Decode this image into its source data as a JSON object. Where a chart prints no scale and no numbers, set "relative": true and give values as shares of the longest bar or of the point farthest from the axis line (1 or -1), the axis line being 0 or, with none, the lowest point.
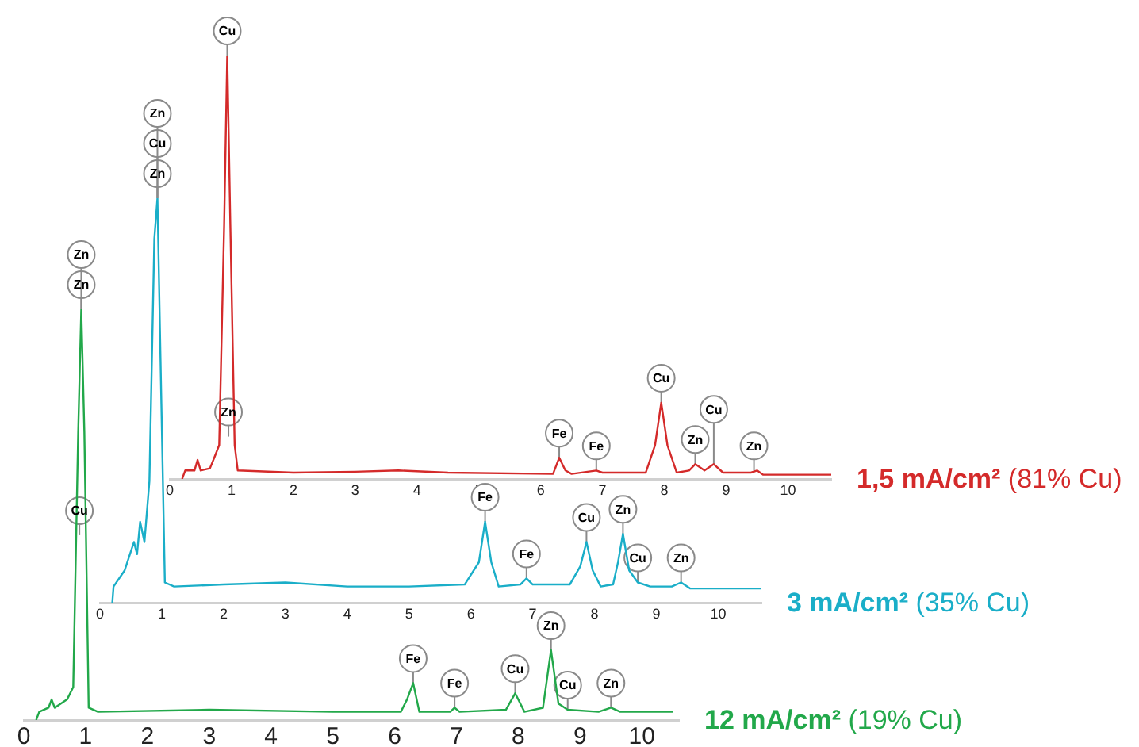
{
  "chart_data": [
    {
      "type": "line",
      "relative": true,
      "marker": "none",
      "xlim": [
        0,
        10.7
      ],
      "xticks": [
        0,
        1,
        2,
        3,
        4,
        5,
        6,
        7,
        8,
        9,
        10
      ],
      "x": [
        0.2,
        0.25,
        0.4,
        0.45,
        0.5,
        0.65,
        0.72,
        0.8,
        0.88,
        0.93,
        0.98,
        1.05,
        1.1,
        2,
        3,
        3.7,
        4.5,
        6.2,
        6.3,
        6.4,
        6.5,
        6.9,
        7,
        7.7,
        7.85,
        7.95,
        8.05,
        8.2,
        8.4,
        8.5,
        8.65,
        8.8,
        8.95,
        9.4,
        9.5,
        9.6,
        10.7
      ],
      "series": [
        {
          "name": "1,5 mA/cm² (81% Cu)",
          "color": "#d42a2a",
          "values": [
            0,
            0.02,
            0.02,
            0.045,
            0.02,
            0.025,
            0.05,
            0.08,
            0.6,
            1,
            0.6,
            0.08,
            0.02,
            0.015,
            0.017,
            0.02,
            0.015,
            0.012,
            0.05,
            0.02,
            0.012,
            0.02,
            0.015,
            0.015,
            0.08,
            0.18,
            0.08,
            0.015,
            0.02,
            0.035,
            0.02,
            0.035,
            0.015,
            0.015,
            0.02,
            0.01,
            0.01
          ]
        }
      ],
      "annotations": [
        {
          "text": "Cu",
          "x": 0.93,
          "y": 1
        },
        {
          "text": "Zn",
          "x": 0.95,
          "y": 0.1
        },
        {
          "text": "Fe",
          "x": 6.3,
          "y": 0.05
        },
        {
          "text": "Fe",
          "x": 6.9,
          "y": 0.02
        },
        {
          "text": "Cu",
          "x": 7.95,
          "y": 0.18
        },
        {
          "text": "Zn",
          "x": 8.5,
          "y": 0.035
        },
        {
          "text": "Cu",
          "x": 8.8,
          "y": 0.035
        },
        {
          "text": "Zn",
          "x": 9.45,
          "y": 0.02
        }
      ]
    },
    {
      "type": "line",
      "relative": true,
      "marker": "none",
      "xlim": [
        0,
        10.7
      ],
      "xticks": [
        0,
        1,
        2,
        3,
        4,
        5,
        6,
        7,
        8,
        9,
        10
      ],
      "x": [
        0.2,
        0.22,
        0.4,
        0.55,
        0.6,
        0.65,
        0.72,
        0.8,
        0.88,
        0.93,
        0.98,
        1.05,
        1.2,
        2,
        3,
        4,
        5,
        5.9,
        6.13,
        6.23,
        6.33,
        6.45,
        6.8,
        6.9,
        7,
        7.6,
        7.77,
        7.87,
        7.97,
        8.1,
        8.3,
        8.38,
        8.46,
        8.56,
        8.7,
        8.9,
        9.25,
        9.4,
        9.55,
        10.7
      ],
      "series": [
        {
          "name": "3 mA/cm² (35% Cu)",
          "color": "#1aaec8",
          "values": [
            0,
            0.04,
            0.08,
            0.15,
            0.12,
            0.2,
            0.15,
            0.3,
            0.9,
            1,
            0.6,
            0.05,
            0.04,
            0.045,
            0.05,
            0.04,
            0.04,
            0.045,
            0.1,
            0.2,
            0.1,
            0.04,
            0.045,
            0.06,
            0.045,
            0.045,
            0.09,
            0.15,
            0.08,
            0.04,
            0.045,
            0.1,
            0.17,
            0.08,
            0.05,
            0.04,
            0.04,
            0.05,
            0.035,
            0.035
          ]
        }
      ],
      "annotations": [
        {
          "text": "Zn",
          "x": 0.93,
          "y": 1
        },
        {
          "text": "Cu",
          "x": 0.93,
          "y": 1
        },
        {
          "text": "Zn",
          "x": 0.93,
          "y": 1
        },
        {
          "text": "Fe",
          "x": 6.23,
          "y": 0.2
        },
        {
          "text": "Fe",
          "x": 6.9,
          "y": 0.06
        },
        {
          "text": "Cu",
          "x": 7.87,
          "y": 0.15
        },
        {
          "text": "Zn",
          "x": 8.46,
          "y": 0.17
        },
        {
          "text": "Cu",
          "x": 8.7,
          "y": 0.05
        },
        {
          "text": "Zn",
          "x": 9.4,
          "y": 0.05
        }
      ]
    },
    {
      "type": "line",
      "relative": true,
      "marker": "none",
      "xlim": [
        0,
        10.6
      ],
      "xticks": [
        0,
        1,
        2,
        3,
        4,
        5,
        6,
        7,
        8,
        9,
        10
      ],
      "x": [
        0.2,
        0.25,
        0.4,
        0.45,
        0.5,
        0.7,
        0.8,
        0.88,
        0.93,
        0.98,
        1.05,
        1.2,
        3,
        5,
        6.1,
        6.2,
        6.3,
        6.4,
        6.9,
        6.97,
        7.05,
        7.8,
        7.95,
        8.1,
        8.4,
        8.53,
        8.65,
        8.8,
        9.3,
        9.5,
        9.65,
        10.5
      ],
      "series": [
        {
          "name": "12 mA/cm² (19% Cu)",
          "color": "#22a84a",
          "values": [
            0,
            0.02,
            0.03,
            0.05,
            0.03,
            0.05,
            0.08,
            0.7,
            1,
            0.7,
            0.03,
            0.02,
            0.025,
            0.02,
            0.02,
            0.05,
            0.09,
            0.02,
            0.02,
            0.03,
            0.02,
            0.025,
            0.065,
            0.02,
            0.03,
            0.17,
            0.04,
            0.025,
            0.02,
            0.03,
            0.02,
            0.02
          ]
        }
      ],
      "annotations": [
        {
          "text": "Zn",
          "x": 0.93,
          "y": 1
        },
        {
          "text": "Zn",
          "x": 0.93,
          "y": 1
        },
        {
          "text": "Cu",
          "x": 0.9,
          "y": 0.45
        },
        {
          "text": "Fe",
          "x": 6.3,
          "y": 0.09
        },
        {
          "text": "Fe",
          "x": 6.97,
          "y": 0.03
        },
        {
          "text": "Cu",
          "x": 7.95,
          "y": 0.065
        },
        {
          "text": "Zn",
          "x": 8.53,
          "y": 0.17
        },
        {
          "text": "Cu",
          "x": 8.8,
          "y": 0.025
        },
        {
          "text": "Zn",
          "x": 9.5,
          "y": 0.03
        }
      ]
    }
  ]
}
